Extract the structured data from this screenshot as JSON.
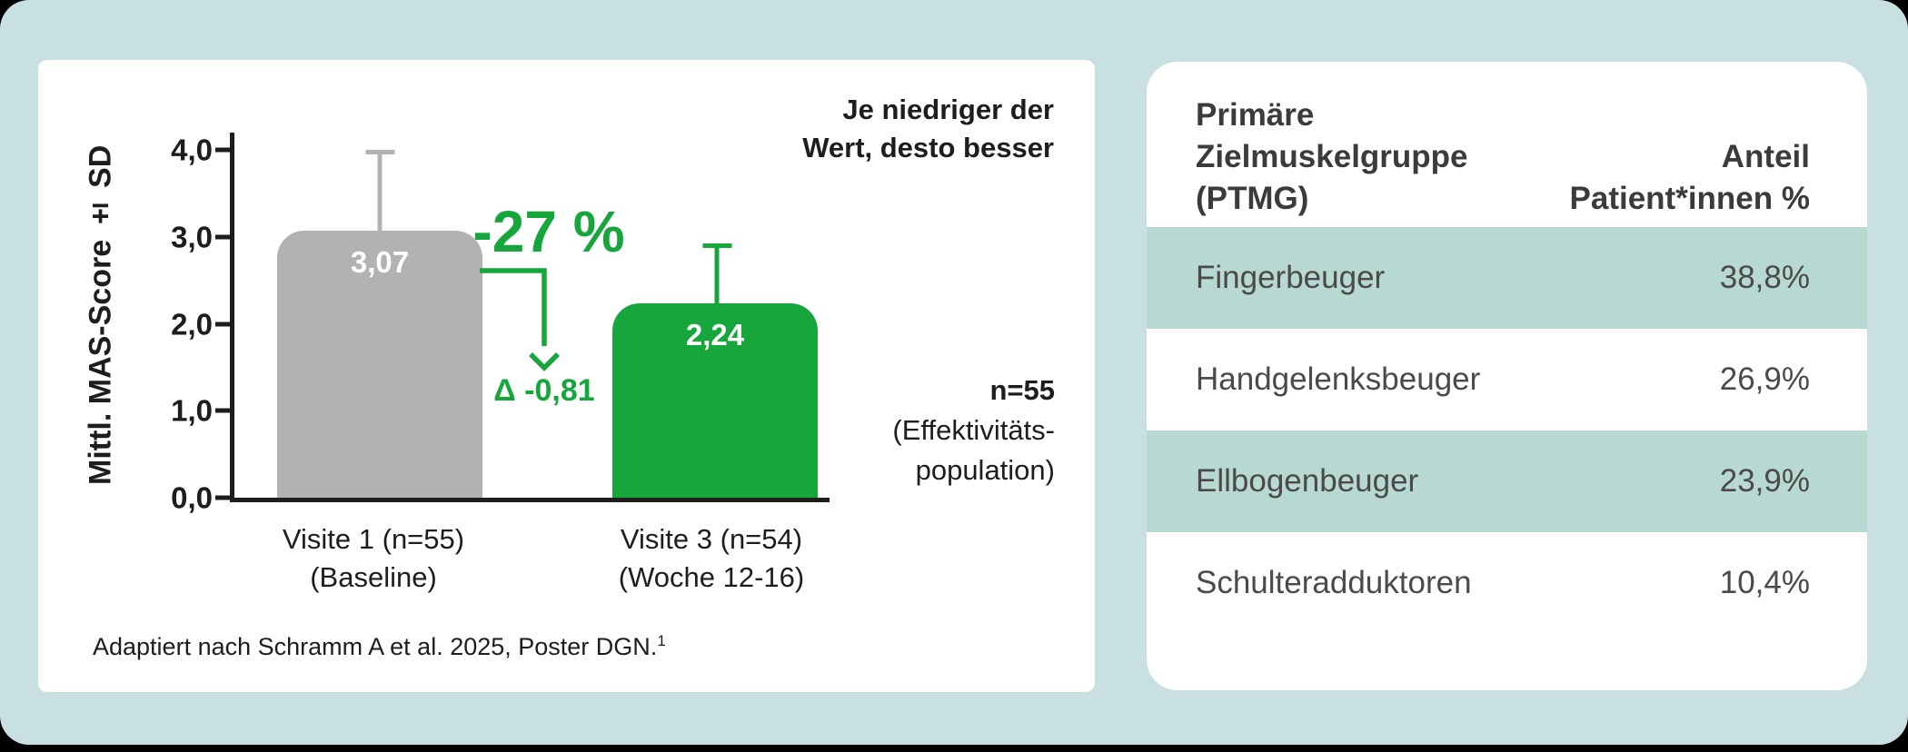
{
  "colors": {
    "green": "#16a63c",
    "gray_bar": "#b2b2b2",
    "panel_bg": "#c9e0e3",
    "teal_row": "#b7d9d2",
    "ink": "#1d1d1b",
    "table_ink": "#4a4a49",
    "table_ink_strong": "#3b3b3a"
  },
  "chart_card": {
    "hint_line1": "Je niedriger der",
    "hint_line2": "Wert, desto besser",
    "population_n": "n=55",
    "population_line2": "(Effektivitäts-",
    "population_line3": "population)",
    "footnote": "Adaptiert nach Schramm A et al. 2025, Poster DGN.",
    "footnote_sup": "1"
  },
  "chart_data": [
    {
      "type": "bar",
      "title": "",
      "xlabel": "",
      "ylabel": "Mittl. MAS-Score ± SD",
      "ylim": [
        0,
        4.2
      ],
      "grid": false,
      "yticks": [
        {
          "value": 4.0,
          "label": "4,0"
        },
        {
          "value": 3.0,
          "label": "3,0"
        },
        {
          "value": 2.0,
          "label": "2,0"
        },
        {
          "value": 1.0,
          "label": "1,0"
        },
        {
          "value": 0.0,
          "label": "0,0"
        }
      ],
      "categories": [
        {
          "line1": "Visite 1 (n=55)",
          "line2": "(Baseline)"
        },
        {
          "line1": "Visite 3 (n=54)",
          "line2": "(Woche 12-16)"
        }
      ],
      "values": [
        3.07,
        2.24
      ],
      "value_labels": [
        "3,07",
        "2,24"
      ],
      "error_top": [
        4.0,
        2.93
      ],
      "bar_colors": [
        "#b2b2b2",
        "#16a63c"
      ],
      "annotation": {
        "percent_change": "-27 %",
        "delta": "Δ -0,81"
      }
    },
    {
      "type": "table",
      "header_left": [
        "Primäre",
        "Zielmuskelgruppe",
        "(PTMG)"
      ],
      "header_right": [
        "Anteil",
        "Patient*innen %"
      ],
      "rows": [
        {
          "label": "Fingerbeuger",
          "value": "38,8%",
          "shaded": true
        },
        {
          "label": "Handgelenksbeuger",
          "value": "26,9%",
          "shaded": false
        },
        {
          "label": "Ellbogenbeuger",
          "value": "23,9%",
          "shaded": true
        },
        {
          "label": "Schulteradduktoren",
          "value": "10,4%",
          "shaded": false
        }
      ]
    }
  ]
}
